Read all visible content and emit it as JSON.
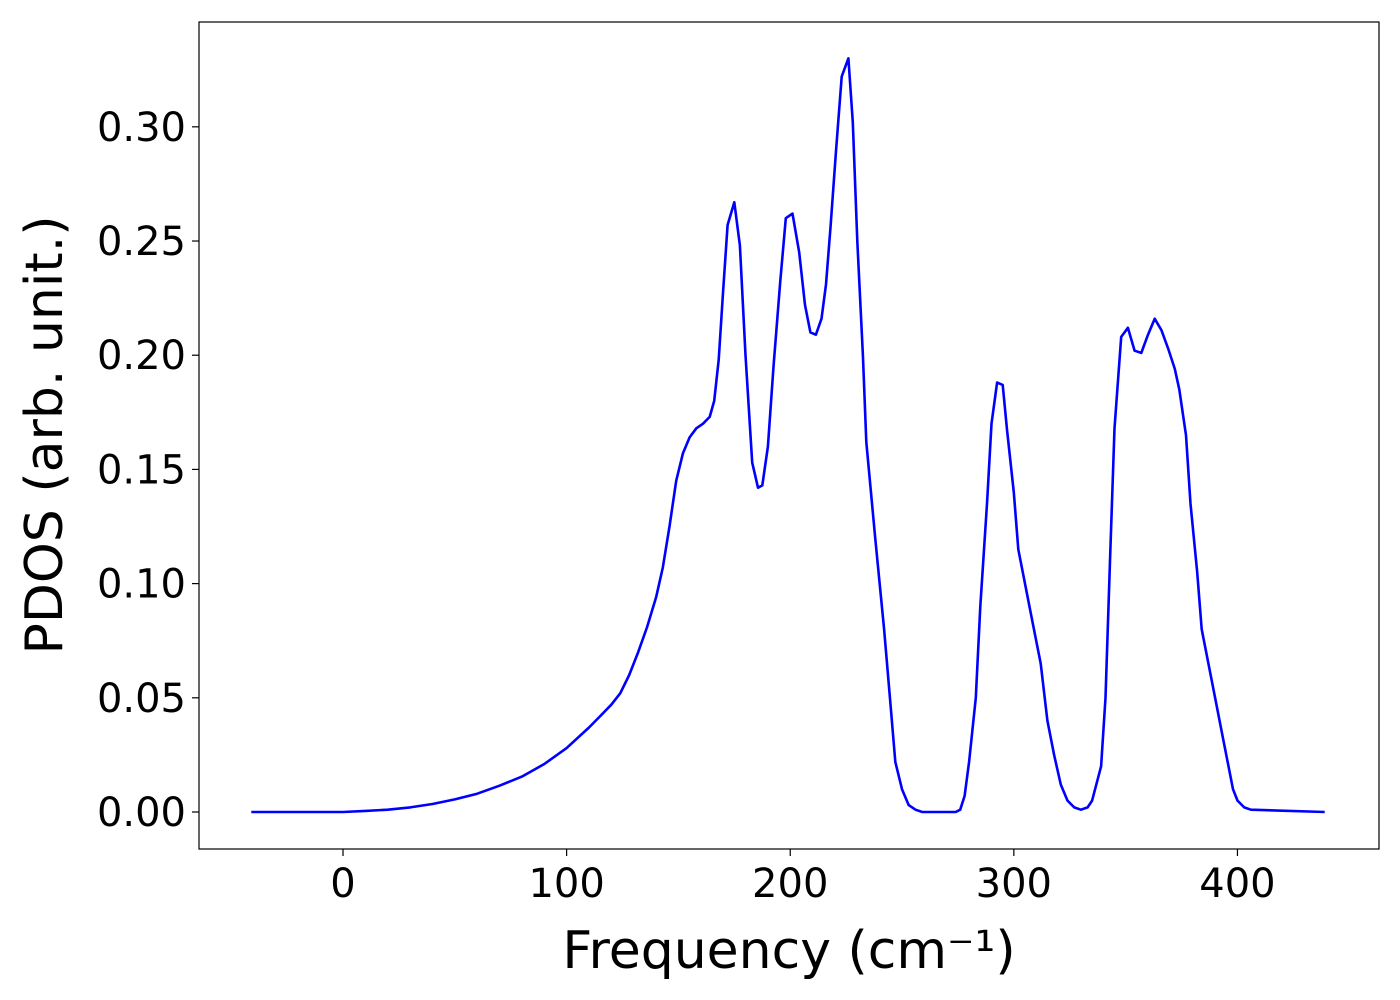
{
  "chart_data": {
    "type": "line",
    "x_label": "Frequency (cm⁻¹)",
    "y_label": "PDOS (arb. unit.)",
    "x": [
      -41,
      0,
      10,
      20,
      30,
      40,
      50,
      60,
      70,
      80,
      90,
      100,
      110,
      115,
      120,
      124,
      128,
      132,
      136,
      140,
      143,
      146,
      149,
      152,
      155,
      158,
      161,
      164,
      166,
      168,
      170,
      172,
      175,
      177.5,
      180,
      183,
      185.6,
      187.5,
      190,
      192.5,
      195.5,
      198,
      201,
      204,
      206.6,
      209,
      211.5,
      214,
      216,
      218,
      220.5,
      223,
      226,
      228,
      230,
      232.5,
      234,
      238,
      242,
      245,
      247,
      250,
      253,
      256,
      259,
      274,
      276,
      278,
      280,
      283,
      285,
      288,
      290,
      292.5,
      295,
      297,
      300,
      302,
      305,
      308,
      312,
      315,
      318,
      321,
      324,
      327,
      330,
      333,
      335,
      339,
      341,
      343,
      345,
      348,
      351,
      354,
      357,
      360,
      363,
      366,
      369,
      372,
      374,
      377,
      379,
      382,
      384,
      387,
      390,
      393,
      396,
      398,
      400,
      403,
      406,
      439
    ],
    "series": [
      {
        "color": "#0000ff",
        "values": [
          0,
          0,
          0.0005,
          0.001,
          0.002,
          0.0035,
          0.0055,
          0.008,
          0.0115,
          0.0155,
          0.021,
          0.028,
          0.037,
          0.042,
          0.047,
          0.052,
          0.06,
          0.07,
          0.081,
          0.094,
          0.107,
          0.125,
          0.145,
          0.157,
          0.164,
          0.168,
          0.17,
          0.173,
          0.18,
          0.198,
          0.228,
          0.257,
          0.267,
          0.248,
          0.2,
          0.153,
          0.142,
          0.143,
          0.16,
          0.195,
          0.232,
          0.26,
          0.262,
          0.245,
          0.222,
          0.21,
          0.209,
          0.216,
          0.231,
          0.256,
          0.29,
          0.322,
          0.33,
          0.302,
          0.25,
          0.2,
          0.162,
          0.12,
          0.08,
          0.045,
          0.022,
          0.01,
          0.003,
          0.001,
          0,
          0,
          0.001,
          0.007,
          0.022,
          0.05,
          0.09,
          0.135,
          0.17,
          0.188,
          0.187,
          0.167,
          0.14,
          0.115,
          0.1,
          0.085,
          0.065,
          0.04,
          0.025,
          0.012,
          0.005,
          0.002,
          0.001,
          0.002,
          0.005,
          0.02,
          0.05,
          0.11,
          0.168,
          0.208,
          0.212,
          0.202,
          0.201,
          0.209,
          0.216,
          0.211,
          0.203,
          0.194,
          0.185,
          0.165,
          0.135,
          0.105,
          0.08,
          0.065,
          0.05,
          0.035,
          0.02,
          0.01,
          0.005,
          0.002,
          0.001,
          0
        ]
      }
    ],
    "xlim": [
      -64.4,
      463.3
    ],
    "ylim": [
      -0.0162,
      0.3459
    ],
    "xticks": [
      0,
      100,
      200,
      300,
      400
    ],
    "yticks": [
      {
        "value": 0,
        "label": "0.00"
      },
      {
        "value": 0.05,
        "label": "0.05"
      },
      {
        "value": 0.1,
        "label": "0.10"
      },
      {
        "value": 0.15,
        "label": "0.15"
      },
      {
        "value": 0.2,
        "label": "0.20"
      },
      {
        "value": 0.25,
        "label": "0.25"
      },
      {
        "value": 0.3,
        "label": "0.30"
      }
    ],
    "grid": false
  }
}
